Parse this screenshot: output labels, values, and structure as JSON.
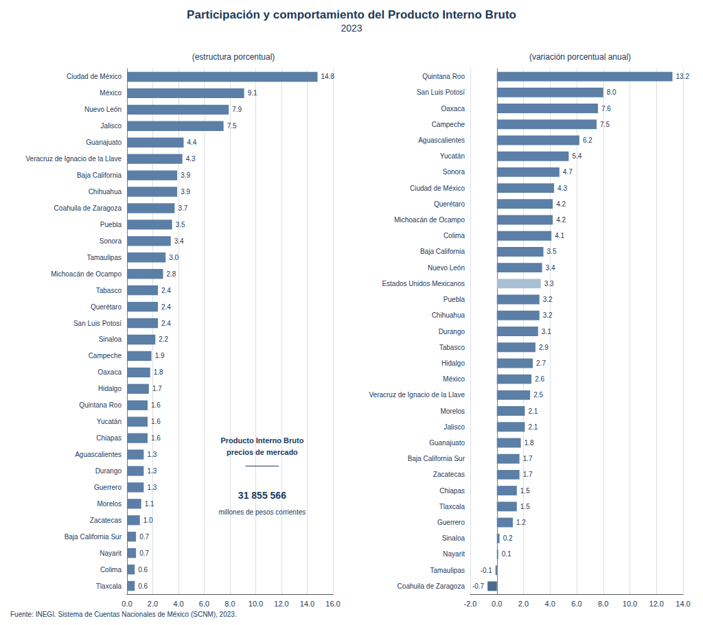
{
  "title": "Participación y comportamiento del Producto Interno Bruto",
  "subtitle": "2023",
  "footnote": "Fuente: INEGI. Sistema de Cuentas Nacionales de México (SCNM), 2023.",
  "chart_data": [
    {
      "type": "bar",
      "orientation": "horizontal",
      "title": "(estructura porcentual)",
      "categories": [
        "Ciudad de México",
        "México",
        "Nuevo León",
        "Jalisco",
        "Guanajuato",
        "Veracruz de Ignacio de la Llave",
        "Baja California",
        "Chihuahua",
        "Coahuila de Zaragoza",
        "Puebla",
        "Sonora",
        "Tamaulipas",
        "Michoacán de Ocampo",
        "Tabasco",
        "Querétaro",
        "San Luis Potosí",
        "Sinaloa",
        "Campeche",
        "Oaxaca",
        "Hidalgo",
        "Quintana Roo",
        "Yucatán",
        "Chiapas",
        "Aguascalientes",
        "Durango",
        "Guerrero",
        "Morelos",
        "Zacatecas",
        "Baja California Sur",
        "Nayarit",
        "Colima",
        "Tlaxcala"
      ],
      "values": [
        14.8,
        9.1,
        7.9,
        7.5,
        4.4,
        4.3,
        3.9,
        3.9,
        3.7,
        3.5,
        3.4,
        3.0,
        2.8,
        2.4,
        2.4,
        2.4,
        2.2,
        1.9,
        1.8,
        1.7,
        1.6,
        1.6,
        1.6,
        1.3,
        1.3,
        1.3,
        1.1,
        1.0,
        0.7,
        0.7,
        0.6,
        0.6
      ],
      "value_labels": [
        "14.8",
        "9.1",
        "7.9",
        "7.5",
        "4.4",
        "4.3",
        "3.9",
        "3.9",
        "3.7",
        "3.5",
        "3.4",
        "3.0",
        "2.8",
        "2.4",
        "2.4",
        "2.4",
        "2.2",
        "1.9",
        "1.8",
        "1.7",
        "1.6",
        "1.6",
        "1.6",
        "1.3",
        "1.3",
        "1.3",
        "1.1",
        "1.0",
        "0.7",
        "0.7",
        "0.6",
        "0.6"
      ],
      "color": "#5b7fa6",
      "xlim": [
        0,
        16.0
      ],
      "xticks": [
        {
          "value": 0,
          "label": "0.0"
        },
        {
          "value": 2,
          "label": "2.0"
        },
        {
          "value": 4,
          "label": "4.0"
        },
        {
          "value": 6,
          "label": "6.0"
        },
        {
          "value": 8,
          "label": "8.0"
        },
        {
          "value": 10,
          "label": "10.0"
        },
        {
          "value": 12,
          "label": "12.0"
        },
        {
          "value": 14,
          "label": "14.0"
        },
        {
          "value": 16,
          "label": "16.0"
        }
      ],
      "grid": true,
      "data_labels": true,
      "annotations": [
        "Producto Interno Bruto\nprecios de mercado",
        "31 855 566",
        "millones de pesos corrientes"
      ]
    },
    {
      "type": "bar",
      "orientation": "horizontal",
      "title": "(variación porcentual anual)",
      "categories": [
        "Quintana Roo",
        "San Luis Potosí",
        "Oaxaca",
        "Campeche",
        "Aguascalientes",
        "Yucatán",
        "Sonora",
        "Ciudad de México",
        "Querétaro",
        "Michoacán de Ocampo",
        "Colima",
        "Baja California",
        "Nuevo León",
        "Estados Unidos Mexicanos",
        "Puebla",
        "Chihuahua",
        "Durango",
        "Tabasco",
        "Hidalgo",
        "México",
        "Veracruz de Ignacio de la Llave",
        "Morelos",
        "Jalisco",
        "Guanajuato",
        "Baja California Sur",
        "Zacatecas",
        "Chiapas",
        "Tlaxcala",
        "Guerrero",
        "Sinaloa",
        "Nayarit",
        "Tamaulipas",
        "Coahuila de Zaragoza"
      ],
      "values": [
        13.2,
        8.0,
        7.6,
        7.5,
        6.2,
        5.4,
        4.7,
        4.3,
        4.2,
        4.2,
        4.1,
        3.5,
        3.4,
        3.3,
        3.2,
        3.2,
        3.1,
        2.9,
        2.7,
        2.6,
        2.5,
        2.1,
        2.1,
        1.8,
        1.7,
        1.7,
        1.5,
        1.5,
        1.2,
        0.2,
        0.1,
        -0.1,
        -0.7
      ],
      "value_labels": [
        "13.2",
        "8.0",
        "7.6",
        "7.5",
        "6.2",
        "5.4",
        "4.7",
        "4.3",
        "4.2",
        "4.2",
        "4.1",
        "3.5",
        "3.4",
        "3.3",
        "3.2",
        "3.2",
        "3.1",
        "2.9",
        "2.7",
        "2.6",
        "2.5",
        "2.1",
        "2.1",
        "1.8",
        "1.7",
        "1.7",
        "1.5",
        "1.5",
        "1.2",
        "0.2",
        "0.1",
        "-0.1",
        "-0.7"
      ],
      "colors": [
        "#5b7fa6",
        "#5b7fa6",
        "#5b7fa6",
        "#5b7fa6",
        "#5b7fa6",
        "#5b7fa6",
        "#5b7fa6",
        "#5b7fa6",
        "#5b7fa6",
        "#5b7fa6",
        "#5b7fa6",
        "#5b7fa6",
        "#5b7fa6",
        "#a8bfd4",
        "#5b7fa6",
        "#5b7fa6",
        "#5b7fa6",
        "#5b7fa6",
        "#5b7fa6",
        "#5b7fa6",
        "#5b7fa6",
        "#5b7fa6",
        "#5b7fa6",
        "#5b7fa6",
        "#5b7fa6",
        "#5b7fa6",
        "#5b7fa6",
        "#5b7fa6",
        "#5b7fa6",
        "#5b7fa6",
        "#5b7fa6",
        "#4a6b8a",
        "#4a6b8a"
      ],
      "xlim": [
        -2.0,
        14.0
      ],
      "xticks": [
        {
          "value": -2,
          "label": "-2.0"
        },
        {
          "value": 0,
          "label": "0.0"
        },
        {
          "value": 2,
          "label": "2.0"
        },
        {
          "value": 4,
          "label": "4.0"
        },
        {
          "value": 6,
          "label": "6.0"
        },
        {
          "value": 8,
          "label": "8.0"
        },
        {
          "value": 10,
          "label": "10.0"
        },
        {
          "value": 12,
          "label": "12.0"
        },
        {
          "value": 14,
          "label": "14.0"
        }
      ],
      "grid": true,
      "data_labels": true
    }
  ]
}
